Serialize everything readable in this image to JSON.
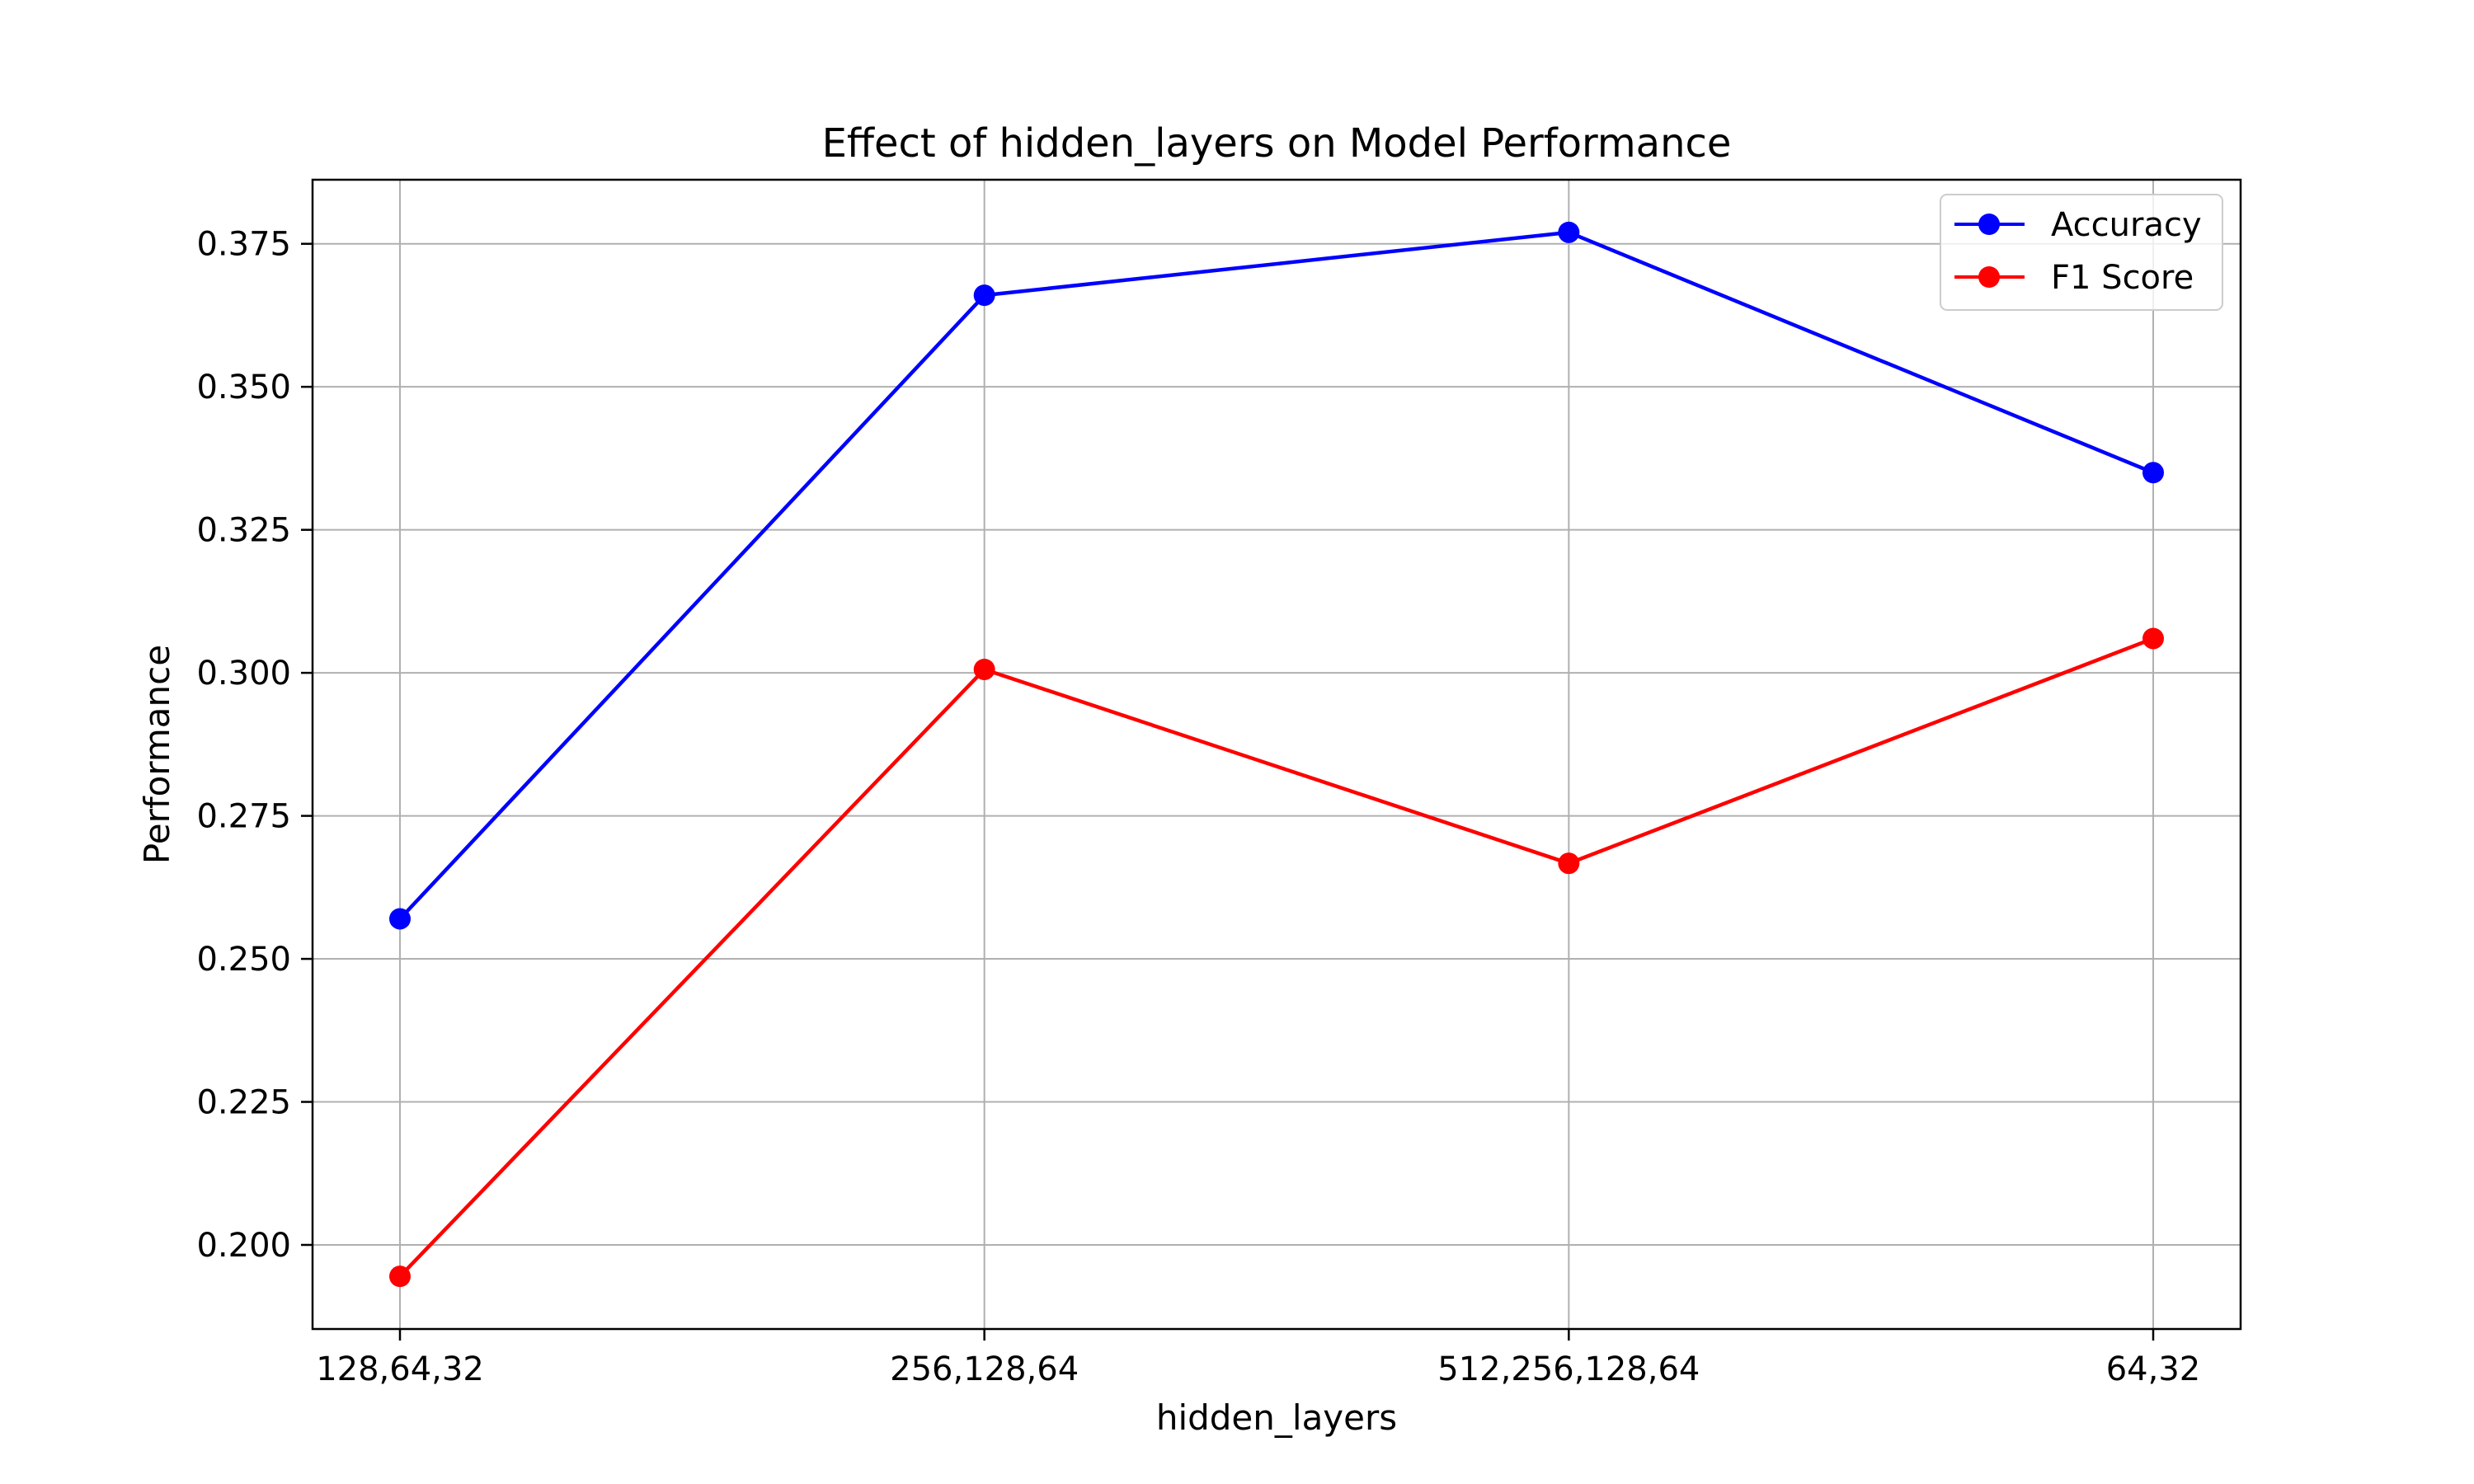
{
  "chart_data": {
    "type": "line",
    "title": "Effect of hidden_layers on Model Performance",
    "xlabel": "hidden_layers",
    "ylabel": "Performance",
    "categories": [
      "128,64,32",
      "256,128,64",
      "512,256,128,64",
      "64,32"
    ],
    "yticks": [
      "0.200",
      "0.225",
      "0.250",
      "0.275",
      "0.300",
      "0.325",
      "0.350",
      "0.375"
    ],
    "ylim": [
      0.1853,
      0.3862
    ],
    "grid": true,
    "legend_position": "top-right",
    "series": [
      {
        "name": "Accuracy",
        "color": "#0000ff",
        "marker": "circle",
        "values": [
          0.257,
          0.366,
          0.377,
          0.335
        ]
      },
      {
        "name": "F1 Score",
        "color": "#ff0000",
        "marker": "circle",
        "values": [
          0.1945,
          0.3006,
          0.2667,
          0.306
        ]
      }
    ]
  }
}
